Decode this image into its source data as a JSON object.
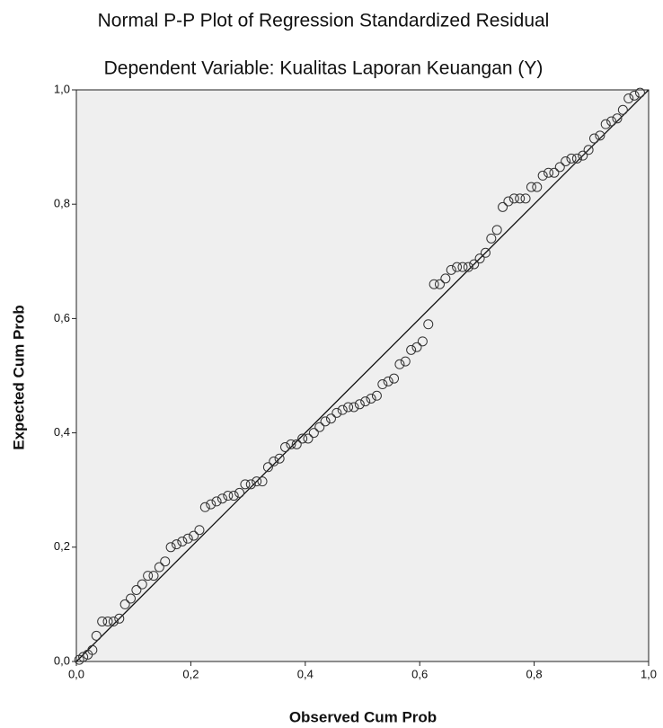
{
  "chart_data": {
    "type": "scatter",
    "title": "Normal P-P Plot of Regression Standardized Residual",
    "subtitle": "Dependent Variable: Kualitas Laporan Keuangan (Y)",
    "x_label": "Observed Cum Prob",
    "y_label": "Expected Cum Prob",
    "x": [
      0.005,
      0.012,
      0.02,
      0.028,
      0.035,
      0.045,
      0.055,
      0.065,
      0.075,
      0.085,
      0.095,
      0.105,
      0.115,
      0.125,
      0.135,
      0.145,
      0.155,
      0.165,
      0.175,
      0.185,
      0.195,
      0.205,
      0.215,
      0.225,
      0.235,
      0.245,
      0.255,
      0.265,
      0.275,
      0.285,
      0.295,
      0.305,
      0.315,
      0.325,
      0.335,
      0.345,
      0.355,
      0.365,
      0.375,
      0.385,
      0.395,
      0.405,
      0.415,
      0.425,
      0.435,
      0.445,
      0.455,
      0.465,
      0.475,
      0.485,
      0.495,
      0.505,
      0.515,
      0.525,
      0.535,
      0.545,
      0.555,
      0.565,
      0.575,
      0.585,
      0.595,
      0.605,
      0.615,
      0.625,
      0.635,
      0.645,
      0.655,
      0.665,
      0.675,
      0.685,
      0.695,
      0.705,
      0.715,
      0.725,
      0.735,
      0.745,
      0.755,
      0.765,
      0.775,
      0.785,
      0.795,
      0.805,
      0.815,
      0.825,
      0.835,
      0.845,
      0.855,
      0.865,
      0.875,
      0.885,
      0.895,
      0.905,
      0.915,
      0.925,
      0.935,
      0.945,
      0.955,
      0.965,
      0.975,
      0.985
    ],
    "values": [
      0.003,
      0.008,
      0.012,
      0.02,
      0.045,
      0.07,
      0.07,
      0.07,
      0.075,
      0.1,
      0.11,
      0.125,
      0.135,
      0.15,
      0.15,
      0.165,
      0.175,
      0.2,
      0.205,
      0.21,
      0.215,
      0.22,
      0.23,
      0.27,
      0.275,
      0.28,
      0.285,
      0.29,
      0.29,
      0.295,
      0.31,
      0.31,
      0.315,
      0.315,
      0.34,
      0.35,
      0.355,
      0.375,
      0.38,
      0.38,
      0.39,
      0.39,
      0.4,
      0.41,
      0.42,
      0.425,
      0.435,
      0.44,
      0.445,
      0.445,
      0.45,
      0.455,
      0.46,
      0.465,
      0.485,
      0.49,
      0.495,
      0.52,
      0.525,
      0.545,
      0.55,
      0.56,
      0.59,
      0.66,
      0.66,
      0.67,
      0.685,
      0.69,
      0.69,
      0.69,
      0.695,
      0.705,
      0.715,
      0.74,
      0.755,
      0.795,
      0.805,
      0.81,
      0.81,
      0.81,
      0.83,
      0.83,
      0.85,
      0.855,
      0.855,
      0.865,
      0.875,
      0.88,
      0.88,
      0.885,
      0.895,
      0.915,
      0.92,
      0.94,
      0.945,
      0.95,
      0.965,
      0.985,
      0.99,
      0.995
    ],
    "color": "#333333",
    "xlim": [
      0,
      1
    ],
    "ylim": [
      0,
      1
    ],
    "xticks": [
      {
        "value": 0,
        "label": "0,0"
      },
      {
        "value": 0.2,
        "label": "0,2"
      },
      {
        "value": 0.4,
        "label": "0,4"
      },
      {
        "value": 0.6,
        "label": "0,6"
      },
      {
        "value": 0.8,
        "label": "0,8"
      },
      {
        "value": 1,
        "label": "1,0"
      }
    ],
    "yticks": [
      {
        "value": 0,
        "label": "0,0"
      },
      {
        "value": 0.2,
        "label": "0,2"
      },
      {
        "value": 0.4,
        "label": "0,4"
      },
      {
        "value": 0.6,
        "label": "0,6"
      },
      {
        "value": 0.8,
        "label": "0,8"
      },
      {
        "value": 1,
        "label": "1,0"
      }
    ]
  }
}
